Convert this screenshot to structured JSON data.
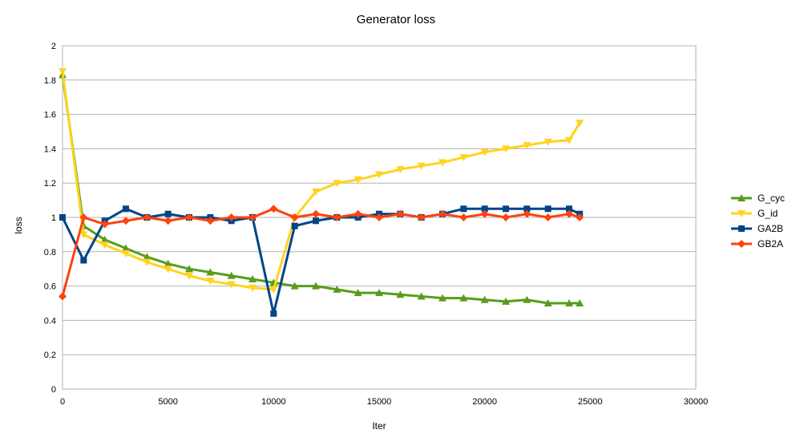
{
  "chart_data": {
    "type": "line",
    "title": "Generator loss",
    "xlabel": "Iter",
    "ylabel": "loss",
    "xlim": [
      0,
      30000
    ],
    "ylim": [
      0,
      2
    ],
    "xticks": [
      0,
      5000,
      10000,
      15000,
      20000,
      25000,
      30000
    ],
    "xtick_labels": [
      "0",
      "5000",
      "10000",
      "15000",
      "20000",
      "25000",
      "30000"
    ],
    "yticks": [
      0,
      0.2,
      0.4,
      0.6,
      0.8,
      1,
      1.2,
      1.4,
      1.6,
      1.8,
      2
    ],
    "ytick_labels": [
      "0",
      "0.2",
      "0.4",
      "0.6",
      "0.8",
      "1",
      "1.2",
      "1.4",
      "1.6",
      "1.8",
      "2"
    ],
    "grid": true,
    "legend_position": "right",
    "x": [
      0,
      1000,
      2000,
      3000,
      4000,
      5000,
      6000,
      7000,
      8000,
      9000,
      10000,
      11000,
      12000,
      13000,
      14000,
      15000,
      16000,
      17000,
      18000,
      19000,
      20000,
      21000,
      22000,
      23000,
      24000,
      24500
    ],
    "series": [
      {
        "name": "G_cyc",
        "color": "#579d1c",
        "marker": "triangle-up",
        "values": [
          1.83,
          0.95,
          0.87,
          0.82,
          0.77,
          0.73,
          0.7,
          0.68,
          0.66,
          0.64,
          0.62,
          0.6,
          0.6,
          0.58,
          0.56,
          0.56,
          0.55,
          0.54,
          0.53,
          0.53,
          0.52,
          0.51,
          0.52,
          0.5,
          0.5,
          0.5
        ]
      },
      {
        "name": "G_id",
        "color": "#ffd320",
        "marker": "triangle-down",
        "values": [
          1.85,
          0.9,
          0.84,
          0.79,
          0.74,
          0.7,
          0.66,
          0.63,
          0.61,
          0.59,
          0.58,
          1.0,
          1.15,
          1.2,
          1.22,
          1.25,
          1.28,
          1.3,
          1.32,
          1.35,
          1.38,
          1.4,
          1.42,
          1.44,
          1.45,
          1.55
        ]
      },
      {
        "name": "GA2B",
        "color": "#004586",
        "marker": "square",
        "values": [
          1.0,
          0.75,
          0.98,
          1.05,
          1.0,
          1.02,
          1.0,
          1.0,
          0.98,
          1.0,
          0.44,
          0.95,
          0.98,
          1.0,
          1.0,
          1.02,
          1.02,
          1.0,
          1.02,
          1.05,
          1.05,
          1.05,
          1.05,
          1.05,
          1.05,
          1.02
        ]
      },
      {
        "name": "GB2A",
        "color": "#ff420e",
        "marker": "diamond",
        "values": [
          0.54,
          1.0,
          0.96,
          0.98,
          1.0,
          0.98,
          1.0,
          0.98,
          1.0,
          1.0,
          1.05,
          1.0,
          1.02,
          1.0,
          1.02,
          1.0,
          1.02,
          1.0,
          1.02,
          1.0,
          1.02,
          1.0,
          1.02,
          1.0,
          1.02,
          1.0
        ]
      }
    ]
  }
}
